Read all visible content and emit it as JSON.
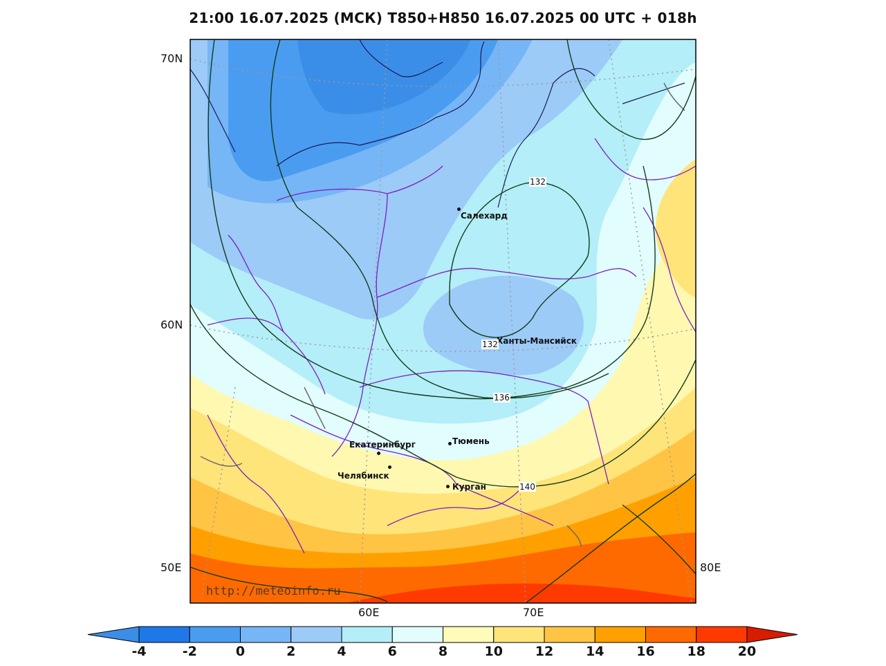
{
  "title": "21:00 16.07.2025 (МСК) T850+H850 16.07.2025 00 UTC + 018h",
  "watermark": "http://meteoinfo.ru",
  "lat_labels": [
    "70N",
    "60N",
    "50E"
  ],
  "lon_labels": [
    "60E",
    "70E",
    "80E"
  ],
  "cities": [
    {
      "name": "Салехард"
    },
    {
      "name": "Ханты-Мансийск"
    },
    {
      "name": "Екатеринбург"
    },
    {
      "name": "Тюмень"
    },
    {
      "name": "Челябинск"
    },
    {
      "name": "Курган"
    }
  ],
  "contour_labels": [
    "132",
    "132",
    "136",
    "140"
  ],
  "colorbar": {
    "ticks": [
      "-4",
      "-2",
      "0",
      "2",
      "4",
      "6",
      "8",
      "10",
      "12",
      "14",
      "16",
      "18",
      "20"
    ],
    "colors": [
      "#3b8ee8",
      "#1f78e8",
      "#4a9cf0",
      "#76b6f6",
      "#9ccbf8",
      "#b4eef8",
      "#e2fdfd",
      "#fffbb8",
      "#ffe47a",
      "#ffc444",
      "#ffa000",
      "#ff6a00",
      "#ff3a00",
      "#d81c00"
    ]
  }
}
